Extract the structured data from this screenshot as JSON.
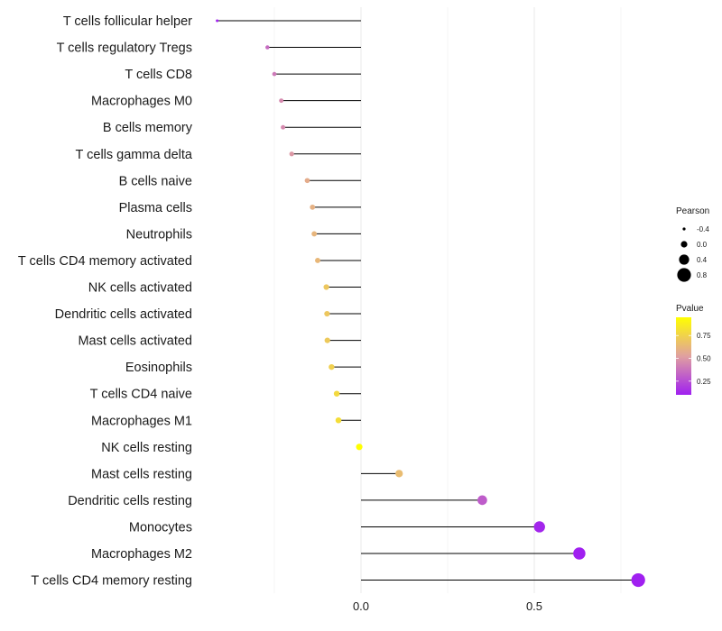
{
  "chart_data": {
    "type": "lollipop",
    "title": "",
    "xlabel": "",
    "ylabel": "",
    "xlim": [
      -0.42,
      0.83
    ],
    "x_ticks": [
      0.0,
      0.5
    ],
    "x_tick_labels": [
      "0.0",
      "0.5"
    ],
    "grid": true,
    "color_scale": {
      "low": "#a020f0",
      "mid": "#e0a0a0",
      "high": "#ffff00",
      "domain": [
        0.1,
        0.95
      ]
    },
    "items": [
      {
        "label": "T cells follicular helper",
        "value": -0.415,
        "pvalue": 0.1
      },
      {
        "label": "T cells regulatory  Tregs",
        "value": -0.27,
        "pvalue": 0.35
      },
      {
        "label": "T cells CD8",
        "value": -0.25,
        "pvalue": 0.4
      },
      {
        "label": "Macrophages M0",
        "value": -0.23,
        "pvalue": 0.45
      },
      {
        "label": "B cells memory",
        "value": -0.225,
        "pvalue": 0.45
      },
      {
        "label": "T cells gamma delta",
        "value": -0.2,
        "pvalue": 0.5
      },
      {
        "label": "B cells naive",
        "value": -0.155,
        "pvalue": 0.58
      },
      {
        "label": "Plasma cells",
        "value": -0.14,
        "pvalue": 0.6
      },
      {
        "label": "Neutrophils",
        "value": -0.135,
        "pvalue": 0.62
      },
      {
        "label": "T cells CD4 memory activated",
        "value": -0.125,
        "pvalue": 0.63
      },
      {
        "label": "NK cells activated",
        "value": -0.1,
        "pvalue": 0.7
      },
      {
        "label": "Dendritic cells activated",
        "value": -0.098,
        "pvalue": 0.7
      },
      {
        "label": "Mast cells activated",
        "value": -0.097,
        "pvalue": 0.71
      },
      {
        "label": "Eosinophils",
        "value": -0.085,
        "pvalue": 0.74
      },
      {
        "label": "T cells CD4 naive",
        "value": -0.07,
        "pvalue": 0.78
      },
      {
        "label": "Macrophages M1",
        "value": -0.065,
        "pvalue": 0.8
      },
      {
        "label": "NK cells resting",
        "value": -0.005,
        "pvalue": 0.99
      },
      {
        "label": "Mast cells resting",
        "value": 0.11,
        "pvalue": 0.65
      },
      {
        "label": "Dendritic cells resting",
        "value": 0.35,
        "pvalue": 0.3
      },
      {
        "label": "Monocytes",
        "value": 0.515,
        "pvalue": 0.12
      },
      {
        "label": "Macrophages M2",
        "value": 0.63,
        "pvalue": 0.09
      },
      {
        "label": "T cells CD4 memory resting",
        "value": 0.8,
        "pvalue": 0.05
      }
    ],
    "legend_size": {
      "title": "Pearson",
      "entries": [
        {
          "label": "-0.4",
          "value": -0.4
        },
        {
          "label": "0.0",
          "value": 0.0
        },
        {
          "label": "0.4",
          "value": 0.4
        },
        {
          "label": "0.8",
          "value": 0.8
        }
      ]
    },
    "legend_color": {
      "title": "Pvalue",
      "entries": [
        {
          "label": "0.75",
          "value": 0.75
        },
        {
          "label": "0.50",
          "value": 0.5
        },
        {
          "label": "0.25",
          "value": 0.25
        }
      ]
    }
  }
}
